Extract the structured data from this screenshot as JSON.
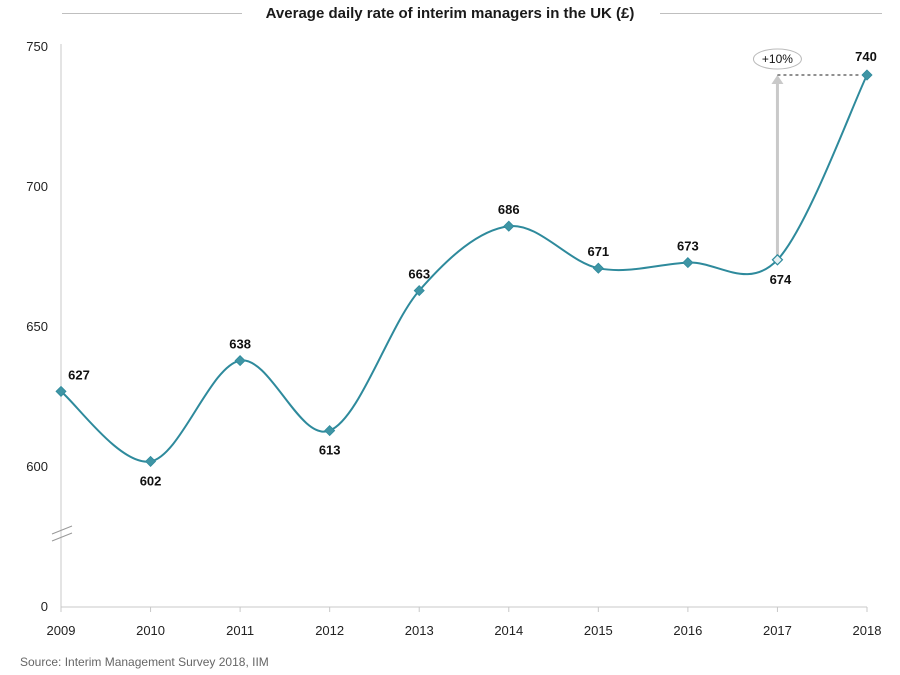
{
  "chart_data": {
    "type": "line",
    "title": "Average daily rate of interim managers in the UK (£)",
    "x": [
      "2009",
      "2010",
      "2011",
      "2012",
      "2013",
      "2014",
      "2015",
      "2016",
      "2017",
      "2018"
    ],
    "series": [
      {
        "values": [
          627,
          602,
          638,
          613,
          663,
          686,
          671,
          673,
          674,
          740
        ]
      }
    ],
    "yticks": [
      "0",
      "600",
      "650",
      "700",
      "750"
    ],
    "ylim": [
      600,
      750
    ],
    "axis_break": true,
    "annotation": {
      "label": "+10%",
      "from": "2017",
      "to": "2018"
    },
    "grid": false,
    "line_color": "#2e8a9c",
    "marker_color": "#3f95a5"
  },
  "source": "Source: Interim Management Survey 2018, IIM"
}
